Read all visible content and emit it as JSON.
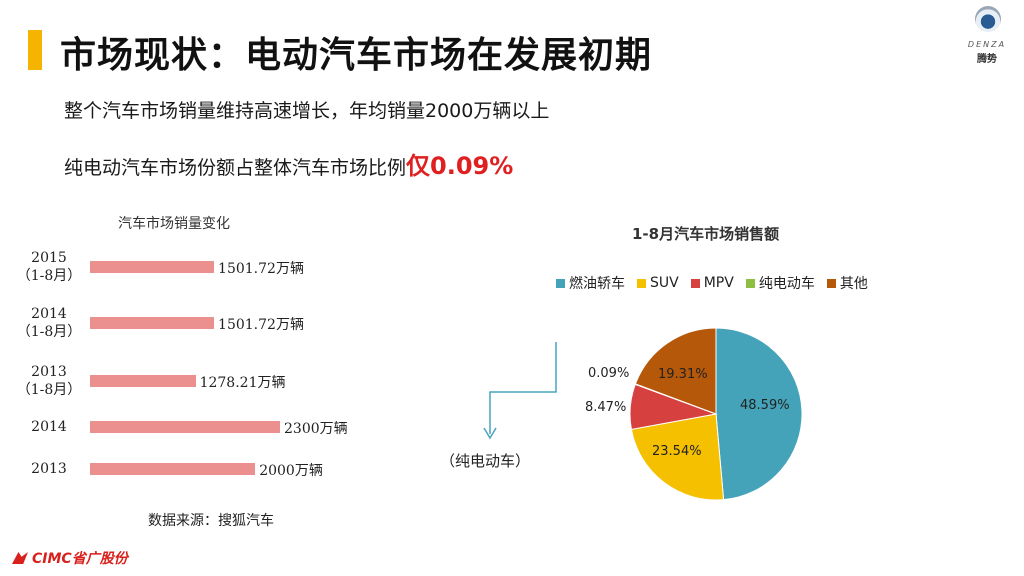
{
  "header": {
    "title": "市场现状：电动汽车市场在发展初期",
    "logo_en": "DENZA",
    "logo_cn": "腾势"
  },
  "bullets": {
    "line1": "整个汽车市场销量维持高速增长，年均销量2000万辆以上",
    "line2_prefix": "纯电动汽车市场份额占整体汽车市场比例",
    "line2_highlight": "仅0.09%"
  },
  "bar_chart": {
    "title": "汽车市场销量变化",
    "source": "数据来源：搜狐汽车"
  },
  "pie_chart_extra": {
    "callout_label": "（纯电动车）"
  },
  "footer": {
    "logo_text": "CIMC省广股份"
  },
  "colors": {
    "accent": "#f4b400",
    "highlight": "#e02020",
    "bar": "#ec8f8f"
  },
  "chart_data": [
    {
      "type": "bar",
      "orientation": "horizontal",
      "title": "汽车市场销量变化",
      "categories": [
        "2015\n（1-8月）",
        "2014\n（1-8月）",
        "2013\n（1-8月）",
        "2014",
        "2013"
      ],
      "values": [
        1501.72,
        1501.72,
        1278.21,
        2300,
        2000
      ],
      "data_labels": [
        "1501.72万辆",
        "1501.72万辆",
        "1278.21万辆",
        "2300万辆",
        "2000万辆"
      ],
      "unit": "万辆"
    },
    {
      "type": "pie",
      "title": "1-8月汽车市场销售额",
      "legend_position": "top",
      "slices": [
        {
          "name": "燃油轿车",
          "value": 48.59,
          "label": "48.59%",
          "color": "#44a3b8"
        },
        {
          "name": "SUV",
          "value": 23.54,
          "label": "23.54%",
          "color": "#f5c000"
        },
        {
          "name": "MPV",
          "value": 8.47,
          "label": "8.47%",
          "color": "#d6403e"
        },
        {
          "name": "纯电动车",
          "value": 0.09,
          "label": "0.09%",
          "color": "#8dbf42"
        },
        {
          "name": "其他",
          "value": 19.31,
          "label": "19.31%",
          "color": "#b5580a"
        }
      ]
    }
  ]
}
